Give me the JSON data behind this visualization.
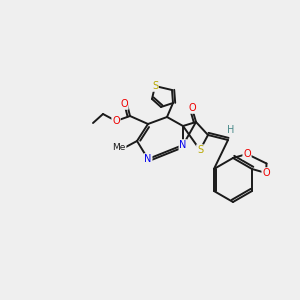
{
  "background_color": "#efefef",
  "bond_color": "#1a1a1a",
  "atom_colors": {
    "S": "#b8a800",
    "N": "#0000ee",
    "O": "#ee0000",
    "C": "#1a1a1a",
    "H": "#4a8a8a"
  },
  "lw": 1.4,
  "lfs": 7.0,
  "figsize": [
    3.0,
    3.0
  ],
  "dpi": 100
}
